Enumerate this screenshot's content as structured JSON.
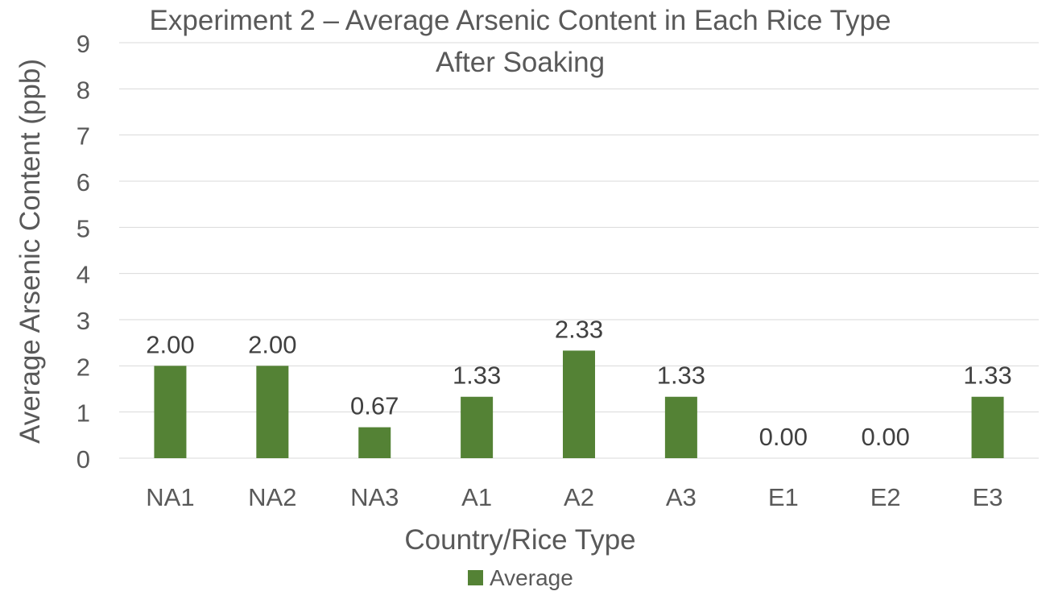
{
  "chart_data": {
    "type": "bar",
    "title_line1": "Experiment 2 – Average Arsenic Content in Each Rice Type",
    "title_line2": "After Soaking",
    "xlabel": "Country/Rice Type",
    "ylabel": "Average Arsenic Content (ppb)",
    "categories": [
      "NA1",
      "NA2",
      "NA3",
      "A1",
      "A2",
      "A3",
      "E1",
      "E2",
      "E3"
    ],
    "series": [
      {
        "name": "Average",
        "values": [
          2.0,
          2.0,
          0.67,
          1.33,
          2.33,
          1.33,
          0.0,
          0.0,
          1.33
        ],
        "labels": [
          "2.00",
          "2.00",
          "0.67",
          "1.33",
          "2.33",
          "1.33",
          "0.00",
          "0.00",
          "1.33"
        ],
        "color": "#548235"
      }
    ],
    "ylim": [
      0,
      9
    ],
    "yticks": [
      "0",
      "1",
      "2",
      "3",
      "4",
      "5",
      "6",
      "7",
      "8",
      "9"
    ],
    "grid": true,
    "legend": "bottom",
    "colors": {
      "bar": "#548235",
      "grid": "#d9d9d9",
      "text": "#595959",
      "label": "#404040"
    }
  }
}
